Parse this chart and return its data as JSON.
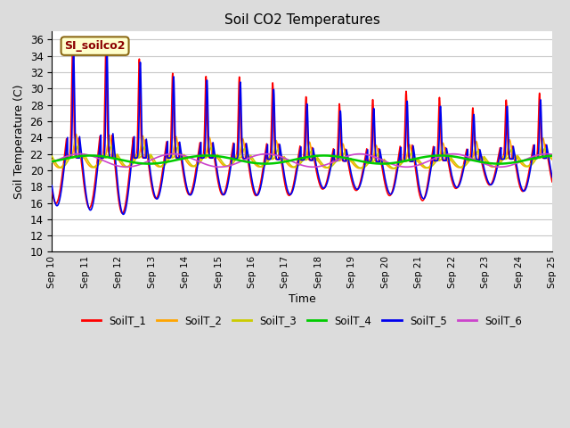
{
  "title": "Soil CO2 Temperatures",
  "xlabel": "Time",
  "ylabel": "Soil Temperature (C)",
  "ylim": [
    10,
    37
  ],
  "yticks": [
    10,
    12,
    14,
    16,
    18,
    20,
    22,
    24,
    26,
    28,
    30,
    32,
    34,
    36
  ],
  "annotation_text": "SI_soilco2",
  "annotation_color": "#8B0000",
  "annotation_bg": "#FFFFCC",
  "annotation_border": "#8B6914",
  "series_colors": {
    "SoilT_1": "#FF0000",
    "SoilT_2": "#FFA500",
    "SoilT_3": "#CCCC00",
    "SoilT_4": "#00CC00",
    "SoilT_5": "#0000EE",
    "SoilT_6": "#CC44CC"
  },
  "series_linewidths": {
    "SoilT_1": 1.2,
    "SoilT_2": 1.2,
    "SoilT_3": 1.2,
    "SoilT_4": 1.8,
    "SoilT_5": 1.2,
    "SoilT_6": 1.2
  },
  "x_start_day": 10,
  "x_end_day": 25,
  "x_tick_days": [
    10,
    11,
    12,
    13,
    14,
    15,
    16,
    17,
    18,
    19,
    20,
    21,
    22,
    23,
    24,
    25
  ],
  "background_color": "#DCDCDC",
  "plot_bg": "#FFFFFF",
  "grid_color": "#C8C8C8",
  "legend_entries": [
    "SoilT_1",
    "SoilT_2",
    "SoilT_3",
    "SoilT_4",
    "SoilT_5",
    "SoilT_6"
  ]
}
